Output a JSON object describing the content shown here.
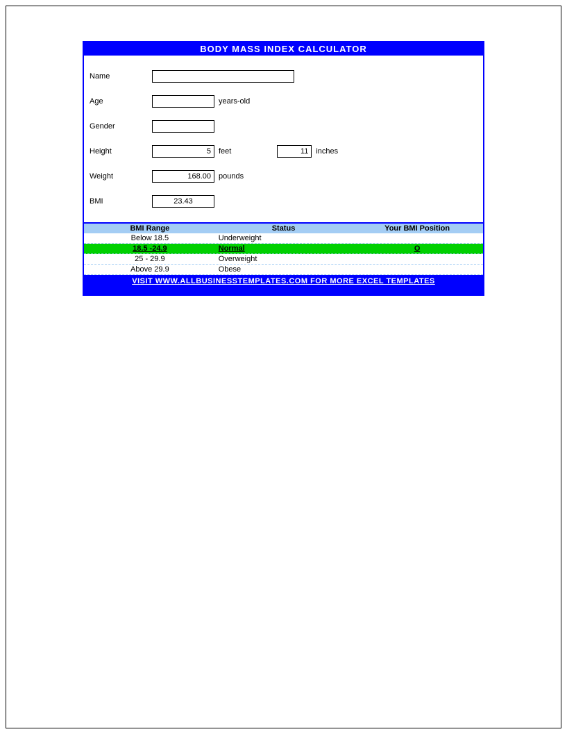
{
  "header": {
    "title": "BODY MASS INDEX CALCULATOR"
  },
  "form": {
    "name": {
      "label": "Name",
      "value": ""
    },
    "age": {
      "label": "Age",
      "value": "",
      "unit": "years-old"
    },
    "gender": {
      "label": "Gender",
      "value": ""
    },
    "height": {
      "label": "Height",
      "feet_value": "5",
      "feet_unit": "feet",
      "inches_value": "11",
      "inches_unit": "inches"
    },
    "weight": {
      "label": "Weight",
      "value": "168.00",
      "unit": "pounds"
    },
    "bmi": {
      "label": "BMI",
      "value": "23.43"
    }
  },
  "table": {
    "headers": {
      "range": "BMI Range",
      "status": "Status",
      "position": "Your BMI Position"
    },
    "rows": [
      {
        "range": "Below 18.5",
        "status": "Underweight",
        "position": "",
        "highlighted": false
      },
      {
        "range": "18.5 -24.9",
        "status": "Normal",
        "position": "O",
        "highlighted": true
      },
      {
        "range": "25 - 29.9",
        "status": "Overweight",
        "position": "",
        "highlighted": false
      },
      {
        "range": "Above 29.9",
        "status": "Obese",
        "position": "",
        "highlighted": false
      }
    ]
  },
  "footer": {
    "text": "VISIT WWW.ALLBUSINESSTEMPLATES.COM FOR MORE EXCEL TEMPLATES"
  },
  "colors": {
    "primary_blue": "#0000ff",
    "light_blue": "#a4cdf4",
    "highlight_green": "#00d000",
    "white": "#ffffff",
    "black": "#000000"
  }
}
